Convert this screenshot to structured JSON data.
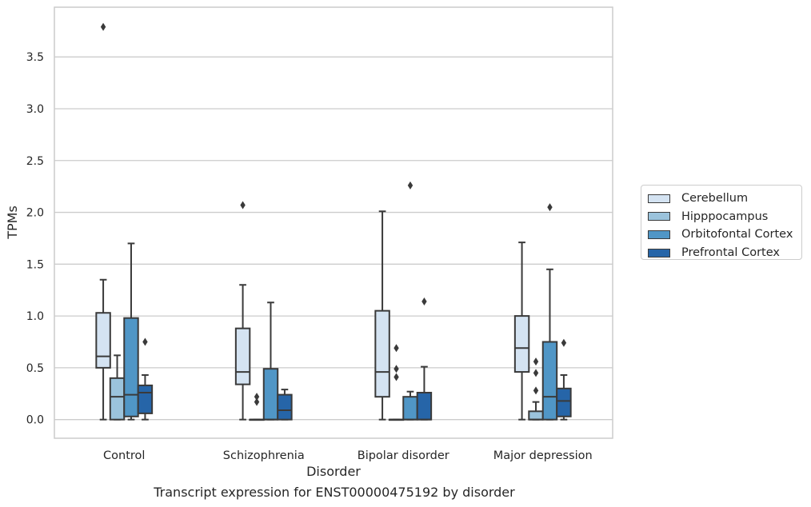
{
  "caption": "Transcript expression for ENST00000475192 by disorder",
  "chart_data": {
    "type": "box",
    "title": "",
    "xlabel": "Disorder",
    "ylabel": "TPMs",
    "ylim": [
      -0.18,
      3.98
    ],
    "yticks": [
      0.0,
      0.5,
      1.0,
      1.5,
      2.0,
      2.5,
      3.0,
      3.5
    ],
    "ytick_labels": [
      "0.0",
      "0.5",
      "1.0",
      "1.5",
      "2.0",
      "2.5",
      "3.0",
      "3.5"
    ],
    "grid": true,
    "legend_position": "right",
    "categories": [
      "Control",
      "Schizophrenia",
      "Bipolar disorder",
      "Major depression"
    ],
    "series": [
      {
        "name": "Cerebellum",
        "color": "#d4e3f2",
        "boxes": [
          {
            "min": 0.0,
            "q1": 0.5,
            "median": 0.61,
            "q3": 1.03,
            "max": 1.35,
            "outliers": [
              3.79
            ]
          },
          {
            "min": 0.0,
            "q1": 0.34,
            "median": 0.46,
            "q3": 0.88,
            "max": 1.3,
            "outliers": [
              2.07
            ]
          },
          {
            "min": 0.0,
            "q1": 0.22,
            "median": 0.46,
            "q3": 1.05,
            "max": 2.01,
            "outliers": []
          },
          {
            "min": 0.0,
            "q1": 0.46,
            "median": 0.69,
            "q3": 1.0,
            "max": 1.71,
            "outliers": []
          }
        ]
      },
      {
        "name": "Hipppocampus",
        "color": "#9bc3dc",
        "boxes": [
          {
            "min": 0.0,
            "q1": 0.0,
            "median": 0.22,
            "q3": 0.4,
            "max": 0.62,
            "outliers": []
          },
          {
            "min": 0.0,
            "q1": 0.0,
            "median": 0.0,
            "q3": 0.0,
            "max": 0.0,
            "outliers": [
              0.17,
              0.22
            ]
          },
          {
            "min": 0.0,
            "q1": 0.0,
            "median": 0.0,
            "q3": 0.0,
            "max": 0.0,
            "outliers": [
              0.41,
              0.49,
              0.69
            ]
          },
          {
            "min": 0.0,
            "q1": 0.0,
            "median": 0.0,
            "q3": 0.08,
            "max": 0.17,
            "outliers": [
              0.28,
              0.45,
              0.56
            ]
          }
        ]
      },
      {
        "name": "Orbitofontal Cortex",
        "color": "#5096c6",
        "boxes": [
          {
            "min": 0.0,
            "q1": 0.03,
            "median": 0.24,
            "q3": 0.98,
            "max": 1.7,
            "outliers": []
          },
          {
            "min": 0.0,
            "q1": 0.0,
            "median": 0.0,
            "q3": 0.49,
            "max": 1.13,
            "outliers": []
          },
          {
            "min": 0.0,
            "q1": 0.0,
            "median": 0.0,
            "q3": 0.22,
            "max": 0.27,
            "outliers": [
              2.26
            ]
          },
          {
            "min": 0.0,
            "q1": 0.0,
            "median": 0.22,
            "q3": 0.75,
            "max": 1.45,
            "outliers": [
              2.05
            ]
          }
        ]
      },
      {
        "name": "Prefrontal Cortex",
        "color": "#2665a8",
        "boxes": [
          {
            "min": 0.0,
            "q1": 0.06,
            "median": 0.26,
            "q3": 0.33,
            "max": 0.43,
            "outliers": [
              0.75
            ]
          },
          {
            "min": 0.0,
            "q1": 0.0,
            "median": 0.09,
            "q3": 0.24,
            "max": 0.29,
            "outliers": []
          },
          {
            "min": 0.0,
            "q1": 0.0,
            "median": 0.0,
            "q3": 0.26,
            "max": 0.51,
            "outliers": [
              1.14
            ]
          },
          {
            "min": 0.0,
            "q1": 0.03,
            "median": 0.18,
            "q3": 0.3,
            "max": 0.43,
            "outliers": [
              0.74
            ]
          }
        ]
      }
    ]
  }
}
